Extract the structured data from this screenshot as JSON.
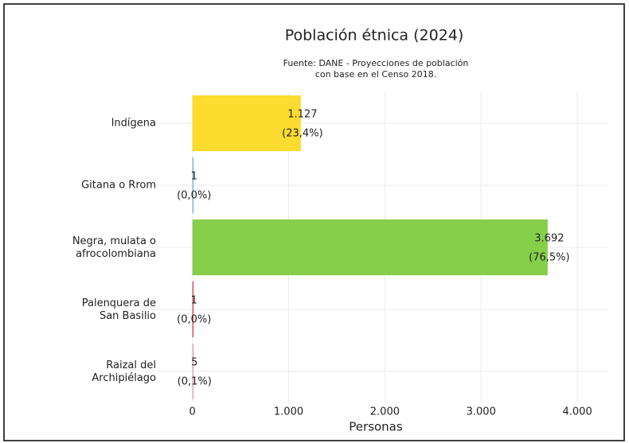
{
  "chart_data": {
    "type": "barh",
    "title": "Población étnica (2024)",
    "subtitle": [
      "Fuente: DANE - Proyecciones de población",
      "con base en el Censo 2018."
    ],
    "categories": [
      "Indígena",
      "Gitana o Rrom",
      "Negra, mulata o\nafrocolombiana",
      "Palenquera de\nSan Basilio",
      "Raizal del\nArchipiélago"
    ],
    "values": [
      1127,
      1,
      3692,
      1,
      5
    ],
    "value_labels": [
      "1.127",
      "1",
      "3.692",
      "1",
      "5"
    ],
    "percent_labels": [
      "(23,4%)",
      "(0,0%)",
      "(76,5%)",
      "(0,0%)",
      "(0,1%)"
    ],
    "colors": [
      "#fbdc2f",
      "#7fb8d8",
      "#86cf4a",
      "#e0505a",
      "#e8a3b6"
    ],
    "xlabel": "Personas",
    "xlim": [
      -510,
      4330
    ],
    "xticks": [
      0,
      {
        "value": 1000,
        "label": "1.000"
      },
      {
        "value": 2000,
        "label": "2.000"
      },
      {
        "value": 3000,
        "label": "3.000"
      },
      {
        "value": 4000,
        "label": "4.000"
      }
    ],
    "grid": true
  }
}
